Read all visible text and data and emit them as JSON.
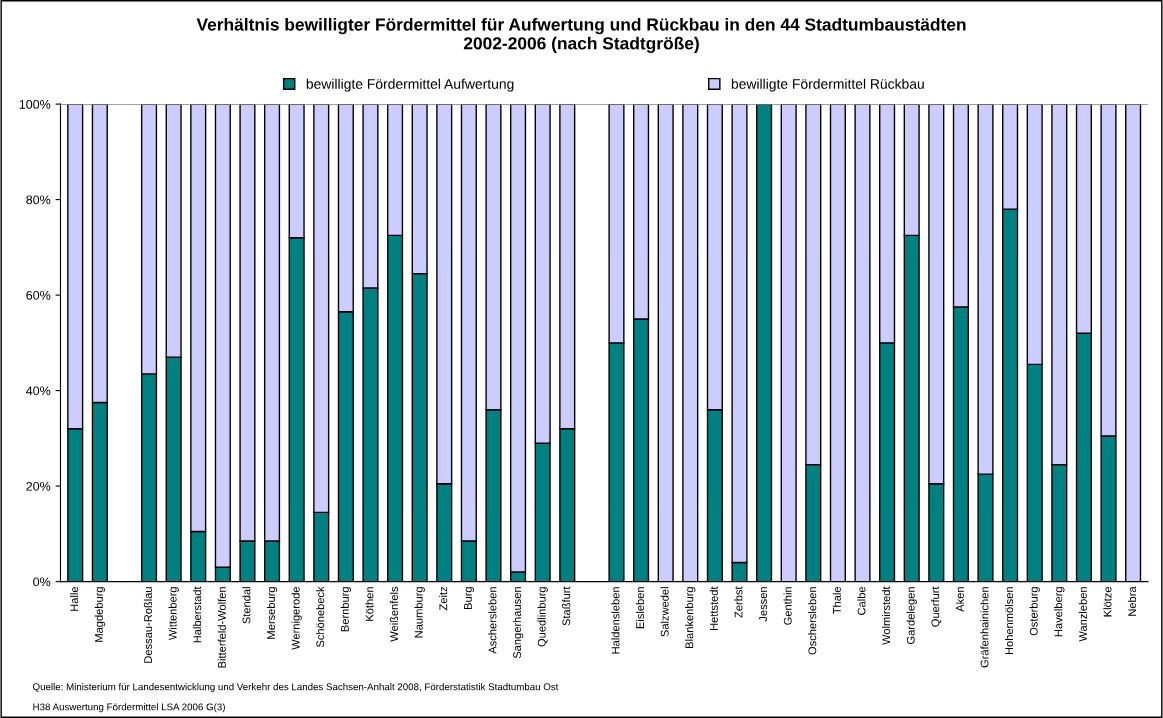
{
  "chart_data": {
    "type": "bar",
    "stacked": true,
    "title": "Verhältnis bewilligter Fördermittel für Aufwertung und Rückbau in den 44 Stadtumbaustädten\n2002-2006 (nach Stadtgröße)",
    "categories": [
      "Halle",
      "Magdeburg",
      null,
      "Dessau-Roßlau",
      "Wittenberg",
      "Halberstadt",
      "Bitterfeld-Wolfen",
      "Stendal",
      "Merseburg",
      "Wernigerode",
      "Schönebeck",
      "Bernburg",
      "Köthen",
      "Weißenfels",
      "Naumburg",
      "Zeitz",
      "Burg",
      "Aschersleben",
      "Sangerhausen",
      "Quedlinburg",
      "Staßfurt",
      null,
      "Haldensleben",
      "Eisleben",
      "Salzwedel",
      "Blankenburg",
      "Hettstedt",
      "Zerbst",
      "Jessen",
      "Genthin",
      "Oschersleben",
      "Thale",
      "Calbe",
      "Wolmirstedt",
      "Gardelegen",
      "Querfurt",
      "Aken",
      "Gräfenhainichen",
      "Hohenmölsen",
      "Osterburg",
      "Havelberg",
      "Wanzleben",
      "Klötze",
      "Nebra"
    ],
    "series": [
      {
        "name": "bewilligte Fördermittel Aufwertung",
        "color": "#008080",
        "values": [
          32,
          37.5,
          null,
          43.5,
          47,
          10.5,
          3,
          8.5,
          8.5,
          72,
          14.5,
          56.5,
          61.5,
          72.5,
          64.5,
          20.5,
          8.5,
          36,
          2,
          29,
          32,
          null,
          50,
          55,
          0,
          0,
          36,
          4,
          100,
          0,
          24.5,
          0,
          0,
          50,
          72.5,
          20.5,
          57.5,
          22.5,
          78,
          45.5,
          24.5,
          52,
          30.5,
          0
        ]
      },
      {
        "name": "bewilligte Fördermittel Rückbau",
        "color": "#ccccff",
        "values": [
          68,
          62.5,
          null,
          56.5,
          53,
          89.5,
          97,
          91.5,
          91.5,
          28,
          85.5,
          43.5,
          38.5,
          27.5,
          35.5,
          79.5,
          91.5,
          64,
          98,
          71,
          68,
          null,
          50,
          45,
          100,
          100,
          64,
          96,
          0,
          100,
          75.5,
          100,
          100,
          50,
          27.5,
          79.5,
          42.5,
          77.5,
          22,
          54.5,
          75.5,
          48,
          69.5,
          100
        ]
      }
    ],
    "ylim": [
      0,
      100
    ],
    "yticks": [
      {
        "value": 0,
        "label": "0%"
      },
      {
        "value": 20,
        "label": "20%"
      },
      {
        "value": 40,
        "label": "40%"
      },
      {
        "value": 60,
        "label": "60%"
      },
      {
        "value": 80,
        "label": "80%"
      },
      {
        "value": 100,
        "label": "100%"
      }
    ],
    "grid": false,
    "legend": "top",
    "annotations": [
      "Quelle: Ministerium für Landesentwicklung und Verkehr des Landes Sachsen-Anhalt 2008, Förderstatistik Stadtumbau Ost",
      "H38 Auswertung Fördermittel LSA 2006 G(3)"
    ]
  }
}
